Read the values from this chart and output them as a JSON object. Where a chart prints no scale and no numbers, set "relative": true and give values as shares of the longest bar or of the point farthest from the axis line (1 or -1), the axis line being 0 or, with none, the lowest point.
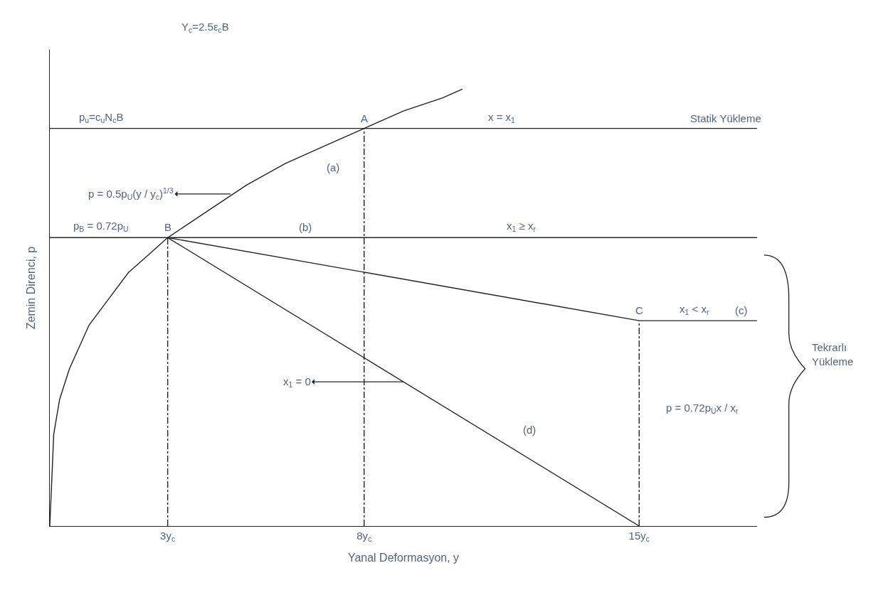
{
  "chart_data": {
    "type": "line",
    "relative": true,
    "xlabel": "Yanal Deformasyon, y",
    "ylabel": "Zemin Direnci, p",
    "xlim": [
      0,
      18
    ],
    "xticks": [
      {
        "value": 3,
        "label": "3y$_{c}$"
      },
      {
        "value": 8,
        "label": "8y$_{c}$"
      },
      {
        "value": 15,
        "label": "15y$_{c}$"
      }
    ],
    "marker": "none",
    "series": [
      {
        "color": "#222222",
        "line_style": "solid",
        "x": [
          0,
          0.1,
          0.25,
          0.5,
          1,
          1.5,
          2,
          2.5,
          3,
          4,
          5,
          6,
          7,
          8,
          9,
          10,
          10.5
        ],
        "values": [
          0,
          0.21,
          0.29,
          0.36,
          0.46,
          0.52,
          0.58,
          0.62,
          0.66,
          0.72,
          0.78,
          0.83,
          0.87,
          0.91,
          0.95,
          0.98,
          1
        ]
      },
      {
        "color": "#222222",
        "line_style": "solid",
        "x": [
          0,
          18
        ],
        "values": [
          0.91,
          0.91
        ]
      },
      {
        "color": "#222222",
        "line_style": "solid",
        "x": [
          0,
          18
        ],
        "values": [
          0.66,
          0.66
        ]
      },
      {
        "color": "#222222",
        "line_style": "dashed",
        "x": [
          3,
          3
        ],
        "values": [
          0,
          0.66
        ]
      },
      {
        "color": "#222222",
        "line_style": "dashed",
        "x": [
          8,
          8
        ],
        "values": [
          0,
          0.91
        ]
      },
      {
        "color": "#222222",
        "line_style": "dashed",
        "x": [
          15,
          15
        ],
        "values": [
          0,
          0.47
        ]
      },
      {
        "color": "#222222",
        "line_style": "solid",
        "x": [
          3,
          15,
          18
        ],
        "values": [
          0.66,
          0.47,
          0.47
        ]
      },
      {
        "color": "#222222",
        "line_style": "solid",
        "x": [
          3,
          15
        ],
        "values": [
          0.66,
          0
        ]
      }
    ],
    "annotations": [
      "Y$_{c}$=2.5ε$_{c}$B",
      {
        "text": "p$_{u}$=c$_{u}$N$_{c}$B",
        "x": 1.3,
        "y": 0.91
      },
      {
        "text": "A",
        "x": 8,
        "y": 0.91
      },
      {
        "text": "x = x$_{1}$",
        "x": 11.5,
        "y": 0.91
      },
      {
        "text": "Statik Yükleme",
        "x": 17.2,
        "y": 0.91
      },
      {
        "text": "p = 0.5p$_{U}$(y / y$_{c}$)$^{1/3}$",
        "x": 4.6,
        "y": 0.76
      },
      "(a)",
      {
        "text": "p$_{B}$ = 0.72p$_{U}$",
        "x": 1.3,
        "y": 0.66
      },
      {
        "text": "B",
        "x": 3,
        "y": 0.66
      },
      {
        "text": "(b)",
        "x": 6.5,
        "y": 0.66
      },
      {
        "text": "x$_{1}$ ≥ x$_{r}$",
        "x": 12,
        "y": 0.66
      },
      {
        "text": "C",
        "x": 15,
        "y": 0.47
      },
      {
        "text": "x$_{1}$ < x$_{r}$",
        "x": 16.4,
        "y": 0.47
      },
      {
        "text": "(c)",
        "x": 17.6,
        "y": 0.47
      },
      "x$_{1}$ = 0",
      "(d)",
      "p = 0.72p$_{U}$x / x$_{r}$",
      "Tekrarlı\nYükleme"
    ]
  }
}
